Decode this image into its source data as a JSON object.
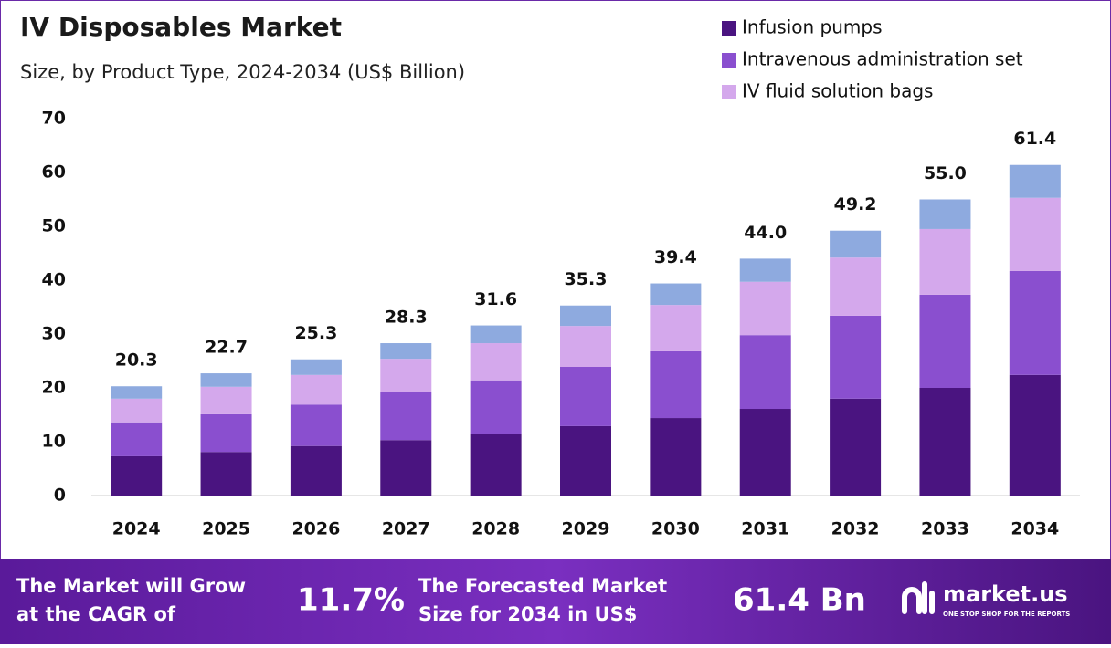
{
  "chart_data": {
    "type": "stacked-bar",
    "title": "IV Disposables Market",
    "subtitle": "Size, by Product Type, 2024-2034 (US$ Billion)",
    "categories": [
      "2024",
      "2025",
      "2026",
      "2027",
      "2028",
      "2029",
      "2030",
      "2031",
      "2032",
      "2033",
      "2034"
    ],
    "series": [
      {
        "name": "Infusion pumps",
        "color": "#4a1480",
        "values": [
          7.3,
          8.1,
          9.2,
          10.3,
          11.5,
          12.9,
          14.4,
          16.1,
          18.0,
          20.0,
          22.4
        ]
      },
      {
        "name": "Intravenous administration set",
        "color": "#8a4fcf",
        "values": [
          6.3,
          7.0,
          7.7,
          8.9,
          9.9,
          11.0,
          12.4,
          13.7,
          15.4,
          17.3,
          19.3
        ]
      },
      {
        "name": "IV fluid solution bags",
        "color": "#d4a8ec",
        "values": [
          4.4,
          5.1,
          5.5,
          6.2,
          6.9,
          7.6,
          8.6,
          9.9,
          10.8,
          12.2,
          13.6
        ]
      },
      {
        "color": "#8eaadf",
        "values": [
          2.3,
          2.5,
          2.9,
          2.9,
          3.3,
          3.8,
          4.0,
          4.3,
          5.0,
          5.5,
          6.1
        ]
      }
    ],
    "totals": {
      "values": [
        20.3,
        22.7,
        25.3,
        28.3,
        31.6,
        35.3,
        39.4,
        44,
        49.2,
        55,
        61.4
      ],
      "value_labels": [
        "20.3",
        "22.7",
        "25.3",
        "28.3",
        "31.6",
        "35.3",
        "39.4",
        "44.0",
        "49.2",
        "55.0",
        "61.4"
      ]
    },
    "ylim": [
      0,
      70
    ],
    "yticks": [
      0,
      10,
      20,
      30,
      40,
      50,
      60,
      70
    ],
    "legend": "top-right"
  },
  "footer": {
    "cagr_text": [
      "The Market will Grow",
      "at the CAGR of"
    ],
    "cagr_value": "11.7%",
    "forecast_text": [
      "The Forecasted Market",
      "Size for 2034 in US$"
    ],
    "forecast_value": "61.4 Bn",
    "logo": "market.us",
    "tagline": "ONE STOP SHOP FOR THE REPORTS"
  }
}
